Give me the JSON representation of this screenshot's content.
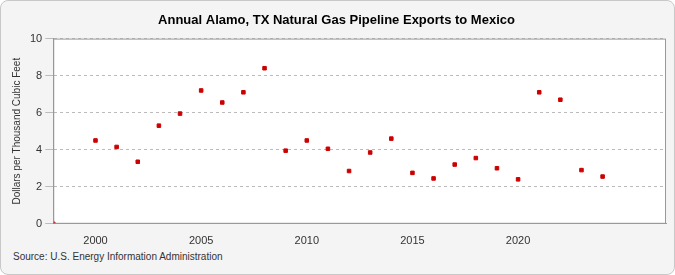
{
  "chart_data": {
    "type": "scatter",
    "title": "Annual Alamo, TX Natural Gas Pipeline Exports to Mexico",
    "y_label": "Dollars per Thousand Cubic Feet",
    "source": "Source: U.S. Energy Information Administration",
    "x": [
      1998,
      2000,
      2001,
      2002,
      2003,
      2004,
      2005,
      2006,
      2007,
      2008,
      2009,
      2010,
      2011,
      2012,
      2013,
      2014,
      2015,
      2016,
      2017,
      2018,
      2019,
      2020,
      2021,
      2022,
      2023,
      2024
    ],
    "values": [
      0,
      4.5,
      4.15,
      3.35,
      5.3,
      5.95,
      7.2,
      6.55,
      7.1,
      8.4,
      3.95,
      4.5,
      4.05,
      2.85,
      3.85,
      4.6,
      2.75,
      2.45,
      3.2,
      3.55,
      3.0,
      2.4,
      7.1,
      6.7,
      2.9,
      2.55
    ],
    "color": "#cc0000",
    "marker": "square",
    "xlim": [
      1998,
      2027
    ],
    "xticks": [
      2000,
      2005,
      2010,
      2015,
      2020
    ],
    "ylim": [
      0,
      10
    ],
    "yticks": [
      0,
      2,
      4,
      6,
      8,
      10
    ],
    "grid": true
  }
}
